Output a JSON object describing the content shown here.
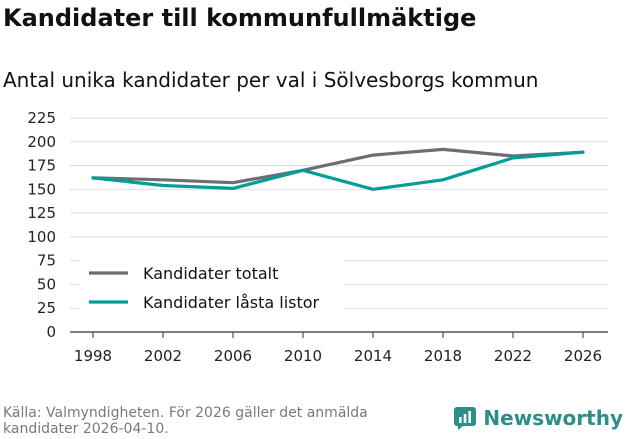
{
  "chart_data": {
    "type": "line",
    "title": "Kandidater till kommunfullmäktige",
    "subtitle": "Antal unika kandidater per val i Sölvesborgs kommun",
    "categories": [
      "1998",
      "2002",
      "2006",
      "2010",
      "2014",
      "2018",
      "2022",
      "2026"
    ],
    "series": [
      {
        "name": "Kandidater totalt",
        "color": "#6e6e72",
        "values": [
          162,
          160,
          157,
          170,
          186,
          192,
          185,
          189
        ]
      },
      {
        "name": "Kandidater låsta listor",
        "color": "#009e96",
        "values": [
          162,
          154,
          151,
          170,
          150,
          160,
          183,
          189
        ]
      }
    ],
    "ylim": [
      0,
      225
    ],
    "yticks": [
      "0",
      "25",
      "50",
      "75",
      "100",
      "125",
      "150",
      "175",
      "200",
      "225"
    ],
    "xlabel": "",
    "ylabel": "",
    "grid": true,
    "legend": "bottom-left"
  },
  "footer": {
    "source": "Källa: Valmyndigheten. För 2026 gäller det anmälda kandidater 2026-04-10.",
    "brand": "Newsworthy",
    "brand_color": "#2b8f87"
  }
}
